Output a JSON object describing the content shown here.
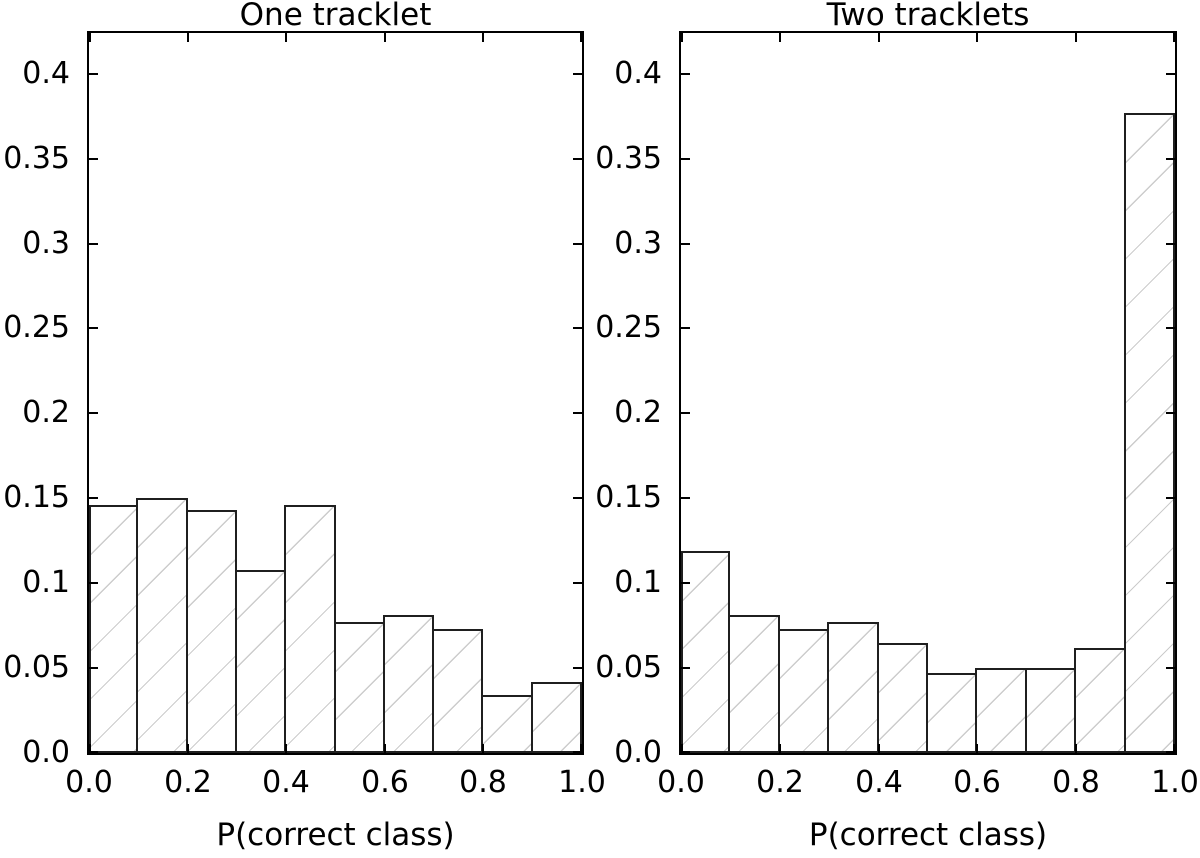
{
  "figure": {
    "background": "#ffffff",
    "text_color": "#000000",
    "axis_color": "#000000",
    "bar_fill": "#ffffff",
    "bar_edge_color": "#1f1f1f",
    "hatch_color": "#cccccc",
    "hatch_style": "/"
  },
  "chart_data": [
    {
      "type": "bar",
      "title": "One tracklet",
      "xlabel": "P(correct class)",
      "ylabel": "",
      "bin_edges": [
        0.0,
        0.1,
        0.2,
        0.3,
        0.4,
        0.5,
        0.6,
        0.7,
        0.8,
        0.9,
        1.0
      ],
      "values": [
        0.146,
        0.15,
        0.143,
        0.108,
        0.146,
        0.077,
        0.081,
        0.073,
        0.034,
        0.042
      ],
      "xlim": [
        0.0,
        1.0
      ],
      "ylim": [
        0.0,
        0.424
      ],
      "xtick_labels": [
        "0.0",
        "0.2",
        "0.4",
        "0.6",
        "0.8",
        "1.0"
      ],
      "ytick_labels": [
        "0.0",
        "0.05",
        "0.1",
        "0.15",
        "0.2",
        "0.25",
        "0.3",
        "0.35",
        "0.4"
      ],
      "grid": false,
      "hatch": "/"
    },
    {
      "type": "bar",
      "title": "Two tracklets",
      "xlabel": "P(correct class)",
      "ylabel": "",
      "bin_edges": [
        0.0,
        0.1,
        0.2,
        0.3,
        0.4,
        0.5,
        0.6,
        0.7,
        0.8,
        0.9,
        1.0
      ],
      "values": [
        0.119,
        0.081,
        0.073,
        0.077,
        0.065,
        0.047,
        0.05,
        0.05,
        0.062,
        0.377
      ],
      "xlim": [
        0.0,
        1.0
      ],
      "ylim": [
        0.0,
        0.424
      ],
      "xtick_labels": [
        "0.0",
        "0.2",
        "0.4",
        "0.6",
        "0.8",
        "1.0"
      ],
      "ytick_labels": [
        "0.0",
        "0.05",
        "0.1",
        "0.15",
        "0.2",
        "0.25",
        "0.3",
        "0.35",
        "0.4"
      ],
      "grid": false,
      "hatch": "/"
    }
  ]
}
